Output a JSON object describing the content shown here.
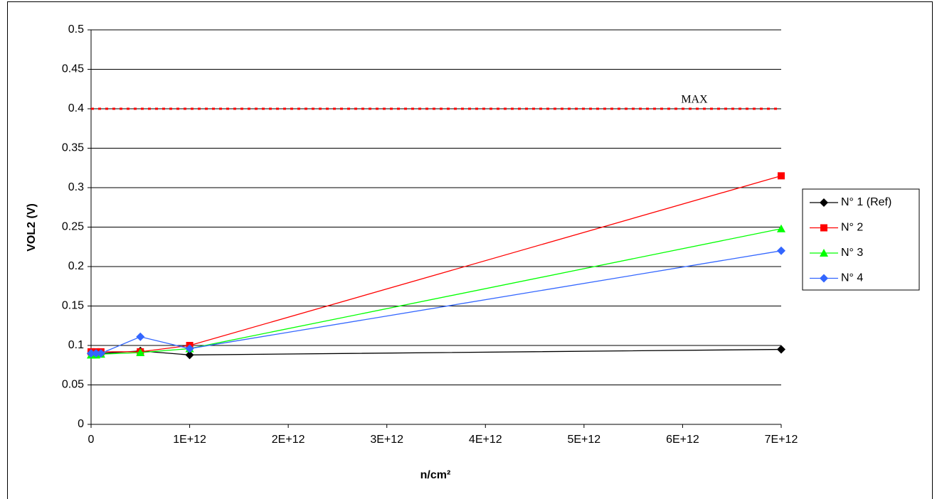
{
  "chart_data": {
    "type": "line",
    "x_label": "n/cm²",
    "y_label": "VOL2 (V)",
    "x": [
      0,
      50000000000,
      100000000000,
      500000000000,
      1000000000000,
      7000000000000
    ],
    "series": [
      {
        "name": "N° 1 (Ref)",
        "color": "#000000",
        "marker": "diamond",
        "values": [
          0.09,
          0.09,
          0.09,
          0.093,
          0.088,
          0.095
        ]
      },
      {
        "name": "N° 2",
        "color": "#ff0000",
        "marker": "square",
        "values": [
          0.092,
          0.092,
          0.092,
          0.092,
          0.1,
          0.315
        ]
      },
      {
        "name": "N° 3",
        "color": "#00ff00",
        "marker": "triangle",
        "values": [
          0.088,
          0.088,
          0.089,
          0.091,
          0.096,
          0.248
        ]
      },
      {
        "name": "N° 4",
        "color": "#3366ff",
        "marker": "diamond",
        "values": [
          0.09,
          0.09,
          0.09,
          0.111,
          0.096,
          0.22
        ]
      }
    ],
    "max_line": {
      "value": 0.4,
      "label": "MAX",
      "color": "#ff0000"
    },
    "xlim": [
      0,
      7000000000000
    ],
    "xticks": [
      0,
      {
        "value": 1000000000000,
        "label": "1E+12"
      },
      {
        "value": 2000000000000,
        "label": "2E+12"
      },
      {
        "value": 3000000000000,
        "label": "3E+12"
      },
      {
        "value": 4000000000000,
        "label": "4E+12"
      },
      {
        "value": 5000000000000,
        "label": "5E+12"
      },
      {
        "value": 6000000000000,
        "label": "6E+12"
      },
      {
        "value": 7000000000000,
        "label": "7E+12"
      }
    ],
    "ylim": [
      0,
      0.5
    ],
    "yticks": [
      0,
      0.05,
      0.1,
      0.15,
      0.2,
      0.25,
      0.3,
      0.35,
      0.4,
      0.45,
      0.5
    ],
    "grid": true,
    "legend": "right"
  }
}
